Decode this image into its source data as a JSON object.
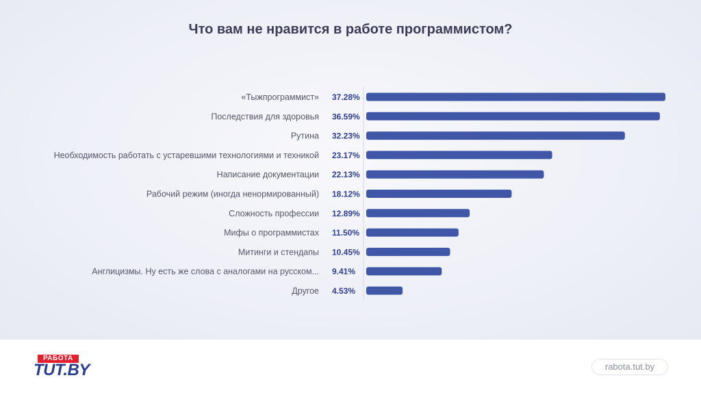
{
  "chart_data": {
    "type": "bar",
    "orientation": "horizontal",
    "title": "Что вам не нравится в работе программистом?",
    "categories": [
      "«Тыжпрограммист»",
      "Последствия для здоровья",
      "Рутина",
      "Необходимость работать с устаревшими технологиями и техникой",
      "Написание документации",
      "Рабочий режим (иногда ненормированный)",
      "Сложность профессии",
      "Мифы о программистах",
      "Митинги и стендапы",
      "Англицизмы. Ну есть же слова с аналогами на русском...",
      "Другое"
    ],
    "value_labels": [
      "37.28%",
      "36.59%",
      "32.23%",
      "23.17%",
      "22.13%",
      "18.12%",
      "12.89%",
      "11.50%",
      "10.45%",
      "9.41%",
      "4.53%"
    ],
    "values": [
      37.28,
      36.59,
      32.23,
      23.17,
      22.13,
      18.12,
      12.89,
      11.5,
      10.45,
      9.41,
      4.53
    ],
    "xlim": [
      0,
      37.28
    ],
    "grid": false,
    "bar_color": "#3f57a6",
    "value_color": "#2e3f8f",
    "label_color": "#55566a"
  },
  "footer": {
    "logo_top": "РАБОТА",
    "logo_main": "TUT.BY",
    "site": "rabota.tut.by"
  },
  "colors": {
    "logo_red": "#e4202f",
    "logo_blue": "#2a3d8f"
  }
}
